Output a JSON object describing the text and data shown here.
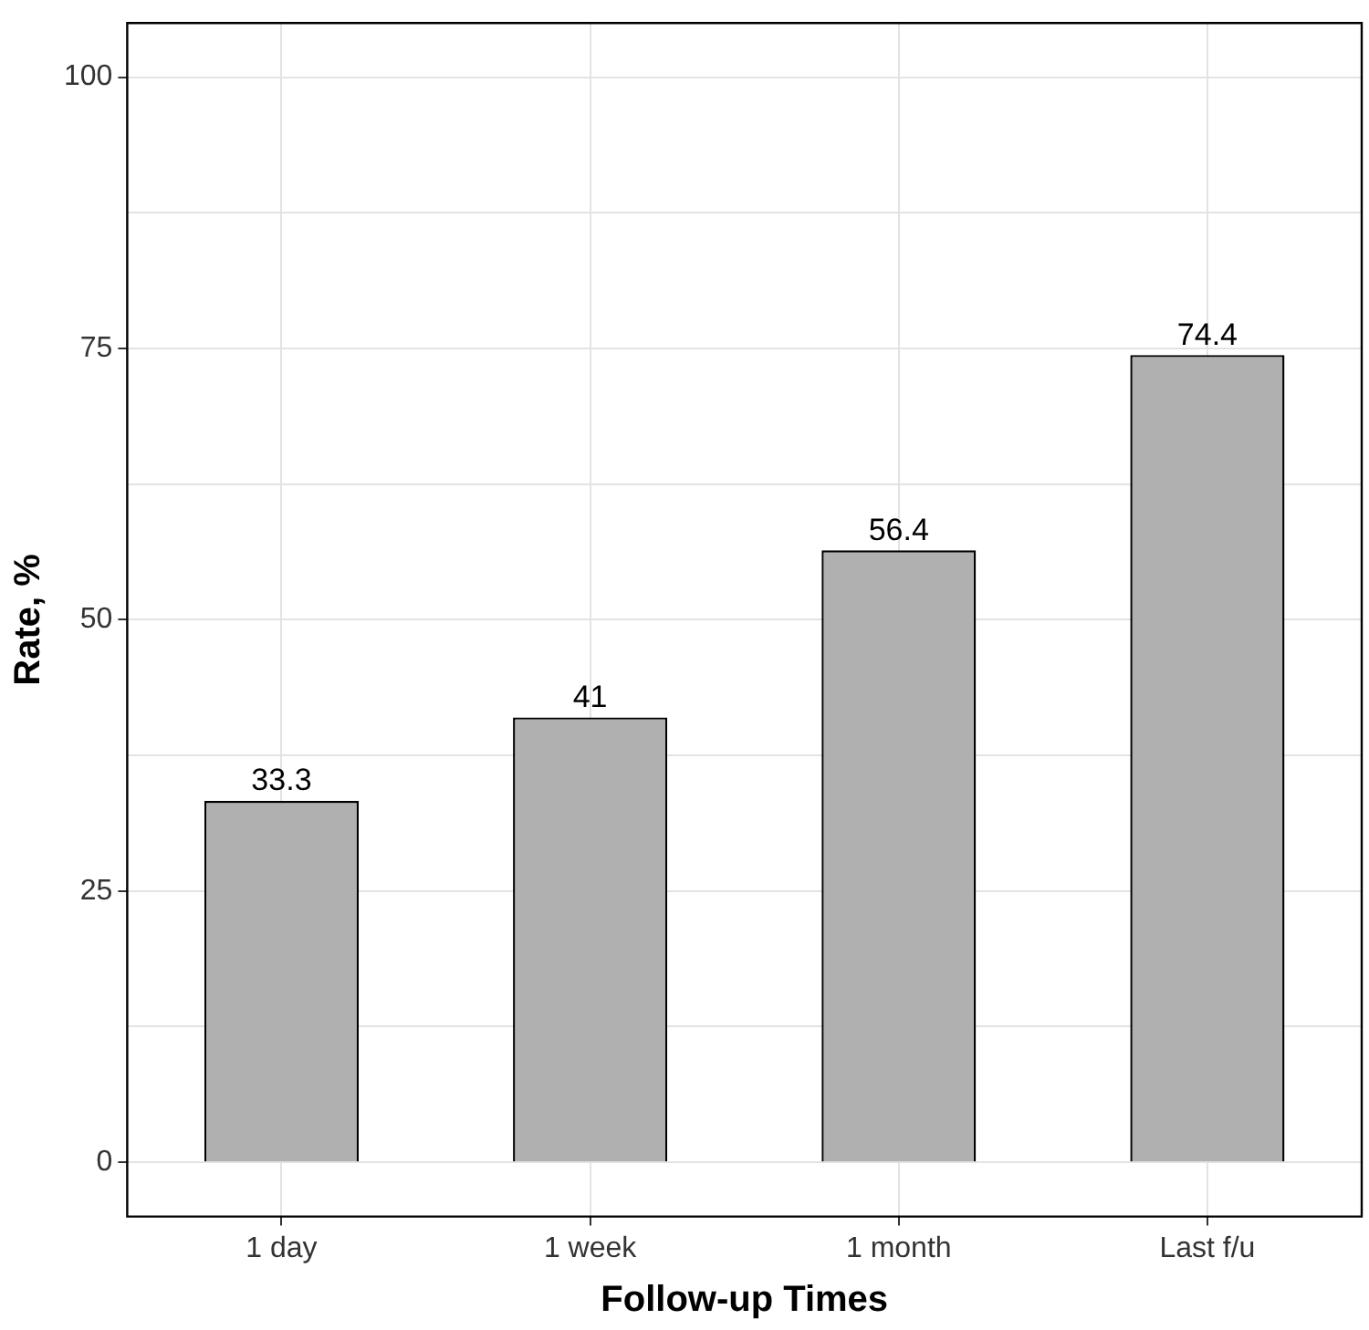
{
  "chart_data": {
    "type": "bar",
    "xlabel": "Follow-up Times",
    "ylabel": "Rate, %",
    "categories": [
      "1 day",
      "1 week",
      "1 month",
      "Last f/u"
    ],
    "values": [
      33.3,
      41,
      56.4,
      74.4
    ],
    "color": "#b0b0b0",
    "ylim": [
      -5,
      105
    ],
    "yticks": [
      0,
      {
        "value": 12.5,
        "label": null
      },
      25,
      {
        "value": 37.5,
        "label": null
      },
      50,
      {
        "value": 62.5,
        "label": null
      },
      75,
      {
        "value": 87.5,
        "label": null
      },
      100
    ],
    "grid": true,
    "data_labels": true
  }
}
